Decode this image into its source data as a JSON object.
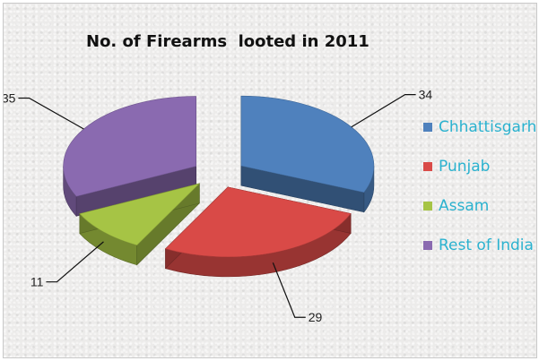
{
  "chart_data": {
    "type": "pie",
    "title": "No. of Firearms  looted in 2011",
    "style": "3d-exploded",
    "legend_position": "right",
    "categories": [
      "Chhattisgarh",
      "Punjab",
      "Assam",
      "Rest of India"
    ],
    "values": [
      34,
      29,
      11,
      35
    ],
    "colors": [
      "#4f81bd",
      "#d94a47",
      "#a6c445",
      "#8a6ab0"
    ],
    "data_labels": [
      "34",
      "29",
      "11",
      "35"
    ]
  }
}
